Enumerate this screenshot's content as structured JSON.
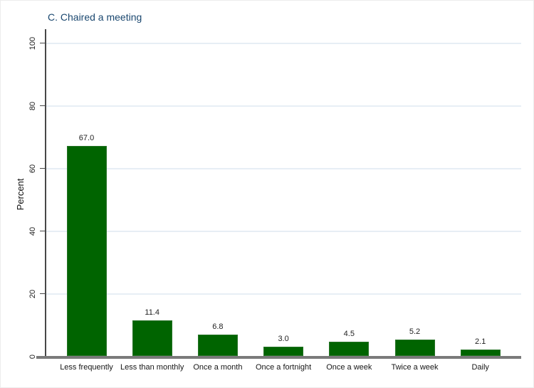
{
  "chart_data": {
    "type": "bar",
    "title": "C. Chaired a meeting",
    "xlabel": "",
    "ylabel": "Percent",
    "categories": [
      "Less frequently",
      "Less than monthly",
      "Once a month",
      "Once a fortnight",
      "Once a week",
      "Twice a week",
      "Daily"
    ],
    "values": [
      67.0,
      11.4,
      6.8,
      3.0,
      4.5,
      5.2,
      2.1
    ],
    "value_labels": [
      "67.0",
      "11.4",
      "6.8",
      "3.0",
      "4.5",
      "5.2",
      "2.1"
    ],
    "ylim": [
      0,
      100
    ],
    "yticks": [
      0,
      20,
      40,
      60,
      80,
      100
    ],
    "ytick_labels": [
      "0",
      "20",
      "40",
      "60",
      "80",
      "100"
    ],
    "grid": true,
    "legend": "none",
    "colors": {
      "bar_fill": "#006400",
      "bar_outline": "#267326",
      "title_text": "#1a476f",
      "gridline": "#e7eef5",
      "y_axis_line": "#474747",
      "x_baseline": "#7a7a7a",
      "label_text": "#1c1c1c"
    }
  }
}
